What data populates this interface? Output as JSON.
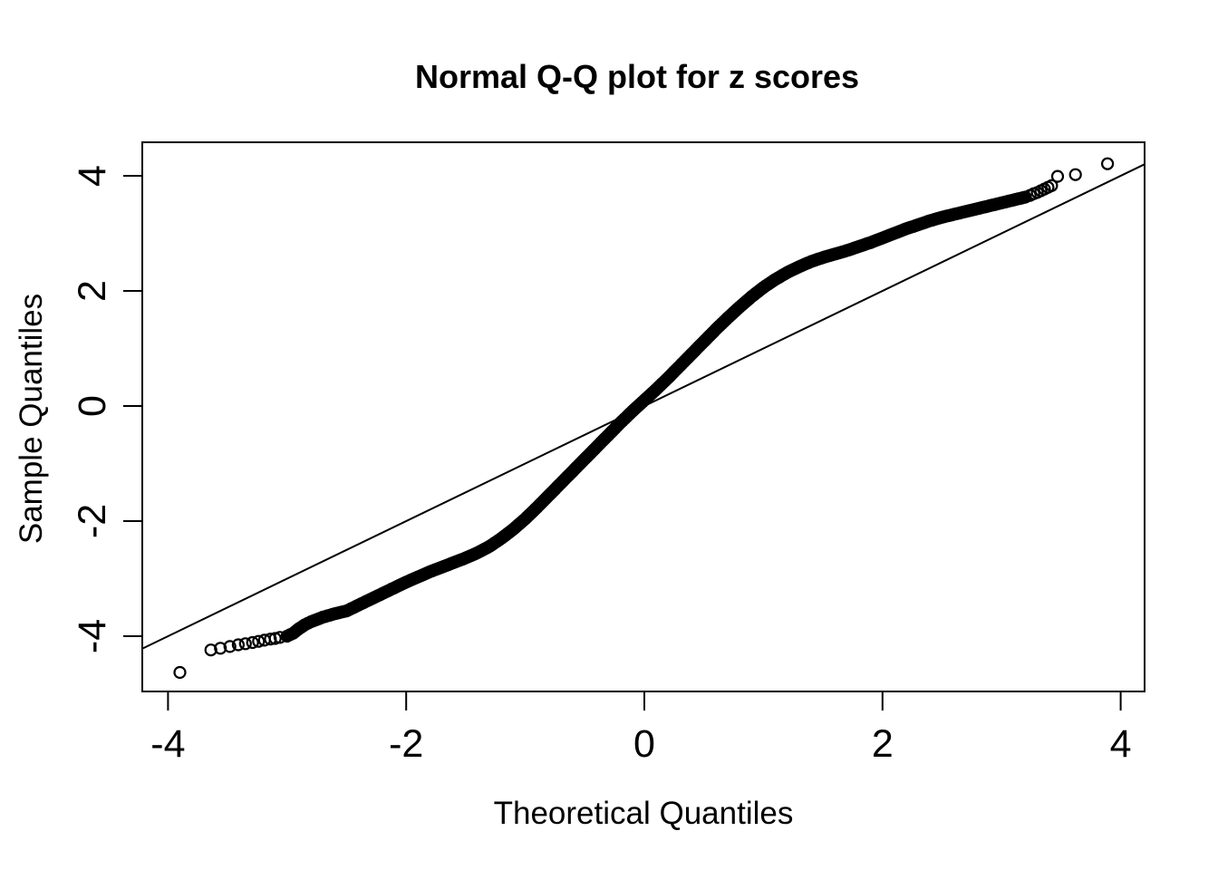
{
  "page": {
    "background_color": "#ffffff"
  },
  "chart_data": {
    "type": "scatter",
    "subtype": "normal-qq-plot",
    "title": "Normal Q-Q plot for z scores",
    "xlabel": "Theoretical Quantiles",
    "ylabel": "Sample Quantiles",
    "x_ticks": [
      -4,
      -2,
      0,
      2,
      4
    ],
    "y_ticks": [
      -4,
      -2,
      0,
      2,
      4
    ],
    "xlim": [
      -4.22,
      4.2
    ],
    "ylim": [
      -4.95,
      4.58
    ],
    "grid": false,
    "legend": "none",
    "colors": {
      "foreground": "#000000",
      "background": "#ffffff"
    },
    "marker": {
      "shape": "open-circle",
      "radius_px": 6,
      "stroke_px": 2.2
    },
    "reference_line": {
      "slope": 1,
      "intercept": 0
    },
    "lower_tail_points": [
      [
        -3.9,
        -4.63
      ],
      [
        -3.64,
        -4.24
      ],
      [
        -3.56,
        -4.21
      ],
      [
        -3.48,
        -4.18
      ],
      [
        -3.41,
        -4.15
      ],
      [
        -3.35,
        -4.13
      ],
      [
        -3.29,
        -4.11
      ],
      [
        -3.24,
        -4.09
      ],
      [
        -3.19,
        -4.07
      ],
      [
        -3.14,
        -4.05
      ],
      [
        -3.1,
        -4.04
      ],
      [
        -3.06,
        -4.02
      ]
    ],
    "band_anchor_points": [
      [
        -3.0,
        -4.0
      ],
      [
        -2.95,
        -3.95
      ],
      [
        -2.9,
        -3.87
      ],
      [
        -2.85,
        -3.8
      ],
      [
        -2.8,
        -3.75
      ],
      [
        -2.7,
        -3.67
      ],
      [
        -2.6,
        -3.61
      ],
      [
        -2.5,
        -3.56
      ],
      [
        -2.4,
        -3.46
      ],
      [
        -2.3,
        -3.36
      ],
      [
        -2.2,
        -3.26
      ],
      [
        -2.1,
        -3.16
      ],
      [
        -2.0,
        -3.06
      ],
      [
        -1.9,
        -2.97
      ],
      [
        -1.8,
        -2.88
      ],
      [
        -1.7,
        -2.8
      ],
      [
        -1.6,
        -2.72
      ],
      [
        -1.5,
        -2.64
      ],
      [
        -1.4,
        -2.55
      ],
      [
        -1.3,
        -2.44
      ],
      [
        -1.2,
        -2.3
      ],
      [
        -1.1,
        -2.14
      ],
      [
        -1.0,
        -1.96
      ],
      [
        -0.9,
        -1.76
      ],
      [
        -0.8,
        -1.55
      ],
      [
        -0.7,
        -1.34
      ],
      [
        -0.6,
        -1.13
      ],
      [
        -0.5,
        -0.92
      ],
      [
        -0.4,
        -0.71
      ],
      [
        -0.3,
        -0.5
      ],
      [
        -0.2,
        -0.29
      ],
      [
        -0.1,
        -0.09
      ],
      [
        0.0,
        0.1
      ],
      [
        0.1,
        0.29
      ],
      [
        0.2,
        0.49
      ],
      [
        0.3,
        0.7
      ],
      [
        0.4,
        0.91
      ],
      [
        0.5,
        1.12
      ],
      [
        0.6,
        1.33
      ],
      [
        0.7,
        1.53
      ],
      [
        0.8,
        1.72
      ],
      [
        0.9,
        1.9
      ],
      [
        1.0,
        2.06
      ],
      [
        1.1,
        2.2
      ],
      [
        1.2,
        2.32
      ],
      [
        1.3,
        2.42
      ],
      [
        1.4,
        2.51
      ],
      [
        1.5,
        2.58
      ],
      [
        1.6,
        2.64
      ],
      [
        1.7,
        2.7
      ],
      [
        1.8,
        2.77
      ],
      [
        1.9,
        2.84
      ],
      [
        2.0,
        2.92
      ],
      [
        2.1,
        3.0
      ],
      [
        2.2,
        3.08
      ],
      [
        2.3,
        3.15
      ],
      [
        2.4,
        3.22
      ],
      [
        2.5,
        3.28
      ],
      [
        2.6,
        3.33
      ],
      [
        2.7,
        3.38
      ],
      [
        2.8,
        3.43
      ],
      [
        2.9,
        3.48
      ],
      [
        3.0,
        3.53
      ],
      [
        3.1,
        3.58
      ],
      [
        3.2,
        3.63
      ]
    ],
    "upper_tail_points": [
      [
        3.24,
        3.66
      ],
      [
        3.27,
        3.69
      ],
      [
        3.3,
        3.71
      ],
      [
        3.33,
        3.74
      ],
      [
        3.36,
        3.77
      ],
      [
        3.39,
        3.8
      ],
      [
        3.42,
        3.83
      ],
      [
        3.47,
        3.99
      ],
      [
        3.62,
        4.02
      ],
      [
        3.89,
        4.21
      ]
    ]
  }
}
